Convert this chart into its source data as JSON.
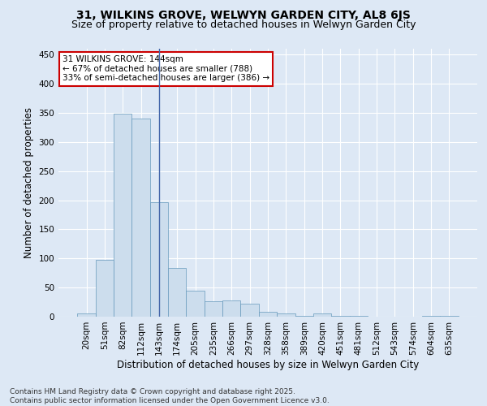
{
  "title1": "31, WILKINS GROVE, WELWYN GARDEN CITY, AL8 6JS",
  "title2": "Size of property relative to detached houses in Welwyn Garden City",
  "xlabel": "Distribution of detached houses by size in Welwyn Garden City",
  "ylabel": "Number of detached properties",
  "bar_values": [
    5,
    98,
    348,
    340,
    197,
    84,
    44,
    27,
    28,
    23,
    9,
    6,
    1,
    5,
    1,
    1,
    0,
    0,
    0,
    1,
    2
  ],
  "bar_labels": [
    "20sqm",
    "51sqm",
    "82sqm",
    "112sqm",
    "143sqm",
    "174sqm",
    "205sqm",
    "235sqm",
    "266sqm",
    "297sqm",
    "328sqm",
    "358sqm",
    "389sqm",
    "420sqm",
    "451sqm",
    "481sqm",
    "512sqm",
    "543sqm",
    "574sqm",
    "604sqm",
    "635sqm"
  ],
  "bar_color": "#ccdded",
  "bar_edge_color": "#6699bb",
  "background_color": "#dde8f5",
  "grid_color": "#ffffff",
  "vline_x": 4,
  "vline_color": "#4466aa",
  "annotation_text": "31 WILKINS GROVE: 144sqm\n← 67% of detached houses are smaller (788)\n33% of semi-detached houses are larger (386) →",
  "annotation_box_color": "#ffffff",
  "annotation_box_edge_color": "#cc0000",
  "ylim": [
    0,
    460
  ],
  "yticks": [
    0,
    50,
    100,
    150,
    200,
    250,
    300,
    350,
    400,
    450
  ],
  "footer_text": "Contains HM Land Registry data © Crown copyright and database right 2025.\nContains public sector information licensed under the Open Government Licence v3.0.",
  "title_fontsize": 10,
  "subtitle_fontsize": 9,
  "axis_label_fontsize": 8.5,
  "tick_fontsize": 7.5,
  "annotation_fontsize": 7.5,
  "footer_fontsize": 6.5
}
